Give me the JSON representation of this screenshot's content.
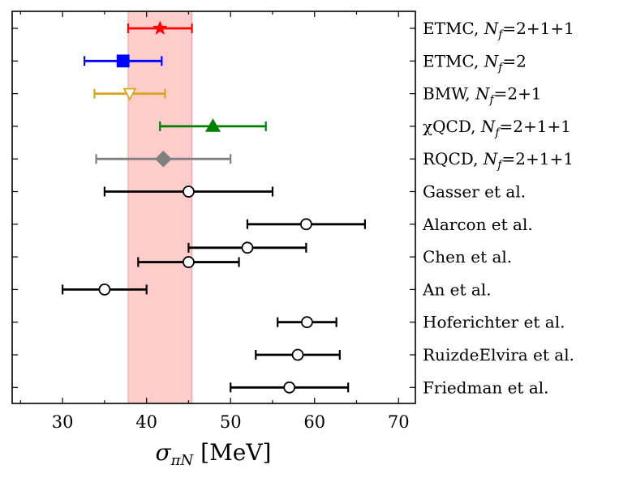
{
  "chart_data": {
    "type": "errorbar",
    "xlabel": "σπN [MeV]",
    "xlim": [
      24,
      72
    ],
    "xticks": [
      30,
      40,
      50,
      60,
      70
    ],
    "band": {
      "lo": 37.8,
      "hi": 45.4,
      "color": "#ffcccc"
    },
    "rows": [
      {
        "label": "ETMC, Nf=2+1+1",
        "lat": true,
        "seg": [
          {
            "x": 41.6,
            "lo": 37.8,
            "hi": 45.4,
            "marker": "star",
            "fill": true
          }
        ],
        "color": "#ff0000"
      },
      {
        "label": "ETMC, Nf=2",
        "lat": true,
        "seg": [
          {
            "x": 37.2,
            "lo": 32.6,
            "hi": 41.8,
            "marker": "square",
            "fill": true
          }
        ],
        "color": "#0000ff"
      },
      {
        "label": "BMW, Nf=2+1",
        "lat": true,
        "seg": [
          {
            "x": 38.0,
            "lo": 33.8,
            "hi": 42.2,
            "marker": "triangle-down",
            "fill": false
          }
        ],
        "color": "#daa520"
      },
      {
        "label": "χQCD, Nf=2+1+1",
        "lat": true,
        "seg": [
          {
            "x": 47.9,
            "lo": 41.6,
            "hi": 54.2,
            "marker": "triangle-up",
            "fill": true
          }
        ],
        "color": "#008000"
      },
      {
        "label": "RQCD, Nf=2+1+1",
        "lat": true,
        "seg": [
          {
            "x": 42.0,
            "lo": 34.0,
            "hi": 50.0,
            "marker": "diamond",
            "fill": true
          }
        ],
        "color": "#808080"
      },
      {
        "label": "Gasser et al.",
        "lat": false,
        "seg": [
          {
            "x": 45,
            "lo": 35,
            "hi": 55,
            "marker": "circle",
            "fill": false
          }
        ],
        "color": "#000000"
      },
      {
        "label": "Alarcon et al.",
        "lat": false,
        "seg": [
          {
            "x": 59,
            "lo": 52,
            "hi": 66,
            "marker": "circle",
            "fill": false
          }
        ],
        "color": "#000000"
      },
      {
        "label": "Chen et al.",
        "lat": false,
        "seg": [
          {
            "x": 52,
            "lo": 45,
            "hi": 59,
            "marker": "circle",
            "fill": false,
            "dy": -0.28
          },
          {
            "x": 45,
            "lo": 39,
            "hi": 51,
            "marker": "circle",
            "fill": false,
            "dy": 0.16
          }
        ],
        "color": "#000000"
      },
      {
        "label": "An et al.",
        "lat": false,
        "seg": [
          {
            "x": 35,
            "lo": 30,
            "hi": 40,
            "marker": "circle",
            "fill": false
          }
        ],
        "color": "#000000"
      },
      {
        "label": "Hoferichter et al.",
        "lat": false,
        "seg": [
          {
            "x": 59.1,
            "lo": 55.6,
            "hi": 62.6,
            "marker": "circle",
            "fill": false
          }
        ],
        "color": "#000000"
      },
      {
        "label": "RuizdeElvira et al.",
        "lat": false,
        "seg": [
          {
            "x": 58,
            "lo": 53,
            "hi": 63,
            "marker": "circle",
            "fill": false
          }
        ],
        "color": "#000000"
      },
      {
        "label": "Friedman et al.",
        "lat": false,
        "seg": [
          {
            "x": 57,
            "lo": 50,
            "hi": 64,
            "marker": "circle",
            "fill": false
          }
        ],
        "color": "#000000"
      }
    ]
  }
}
